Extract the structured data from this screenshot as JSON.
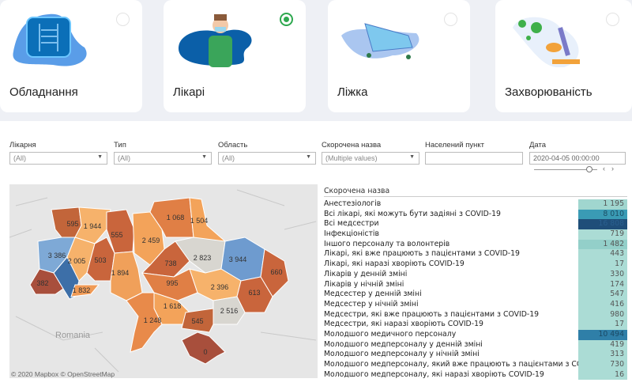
{
  "cards": [
    {
      "label": "Обладнання",
      "icon": "xray-icon",
      "selected": false
    },
    {
      "label": "Лікарі",
      "icon": "doctor-icon",
      "selected": true
    },
    {
      "label": "Ліжка",
      "icon": "hospital-bed-icon",
      "selected": false
    },
    {
      "label": "Захворюваність",
      "icon": "microscope-icon",
      "selected": false
    }
  ],
  "filters": [
    {
      "label": "Лікарня",
      "value": "(All)"
    },
    {
      "label": "Тип",
      "value": "(All)"
    },
    {
      "label": "Область",
      "value": "(All)"
    },
    {
      "label": "Скорочена назва",
      "value": "(Multiple values)"
    },
    {
      "label": "Населений пункт",
      "value": ""
    },
    {
      "label": "Дата",
      "value": "2020-04-05 00:00:00"
    }
  ],
  "map": {
    "country_label": "Romania",
    "attribution": "© 2020 Mapbox © OpenStreetMap",
    "colors": {
      "low": "#a84f3c",
      "mid": "#f6b26b",
      "neutral": "#d8d6d0",
      "high": "#3d6fa8"
    },
    "regions": [
      {
        "value": "595"
      },
      {
        "value": "1 944"
      },
      {
        "value": "555"
      },
      {
        "value": "2 459"
      },
      {
        "value": "1 068"
      },
      {
        "value": "1 504"
      },
      {
        "value": "3 386"
      },
      {
        "value": "2 005"
      },
      {
        "value": "503"
      },
      {
        "value": "1 894"
      },
      {
        "value": "738"
      },
      {
        "value": "2 823"
      },
      {
        "value": "3 944"
      },
      {
        "value": "660"
      },
      {
        "value": "382"
      },
      {
        "value": ""
      },
      {
        "value": "1 832"
      },
      {
        "value": "995"
      },
      {
        "value": "2 396"
      },
      {
        "value": "613"
      },
      {
        "value": "1 618"
      },
      {
        "value": "2 516"
      },
      {
        "value": "1 248"
      },
      {
        "value": "545"
      },
      {
        "value": "0"
      }
    ]
  },
  "table": {
    "header": "Скорочена назва",
    "rows": [
      {
        "name": "Анестезіологів",
        "value": "1 195"
      },
      {
        "name": "Всі лікарі, які можуть бути задіяні з COVID-19",
        "value": "8 010"
      },
      {
        "name": "Всі медсестри",
        "value": "16 808"
      },
      {
        "name": "Інфекціоністів",
        "value": "719"
      },
      {
        "name": "Іншого персоналу та волонтерів",
        "value": "1 482"
      },
      {
        "name": "Лікарі, які вже працюють з пацієнтами з COVID-19",
        "value": "443"
      },
      {
        "name": "Лікарі, які наразі хворіють COVID-19",
        "value": "17"
      },
      {
        "name": "Лікарів у денній зміні",
        "value": "330"
      },
      {
        "name": "Лікарів у нічній зміні",
        "value": "174"
      },
      {
        "name": "Медсестер у денній зміні",
        "value": "547"
      },
      {
        "name": "Медсестер у нічній зміні",
        "value": "416"
      },
      {
        "name": "Медсестри, які вже працюють з пацієнтами з COVID-19",
        "value": "980"
      },
      {
        "name": "Медсестри, які наразі хворіють COVID-19",
        "value": "17"
      },
      {
        "name": "Молодшого медичного персоналу",
        "value": "10 494"
      },
      {
        "name": "Молодшого медперсоналу у денній зміні",
        "value": "419"
      },
      {
        "name": "Молодшого медперсоналу у нічній зміні",
        "value": "313"
      },
      {
        "name": "Молодшого медперсоналу, який вже працюють з пацієнтами з CO..",
        "value": "730"
      },
      {
        "name": "Молодшого медперсоналу, які наразі хворіють COVID-19",
        "value": "16"
      }
    ]
  }
}
